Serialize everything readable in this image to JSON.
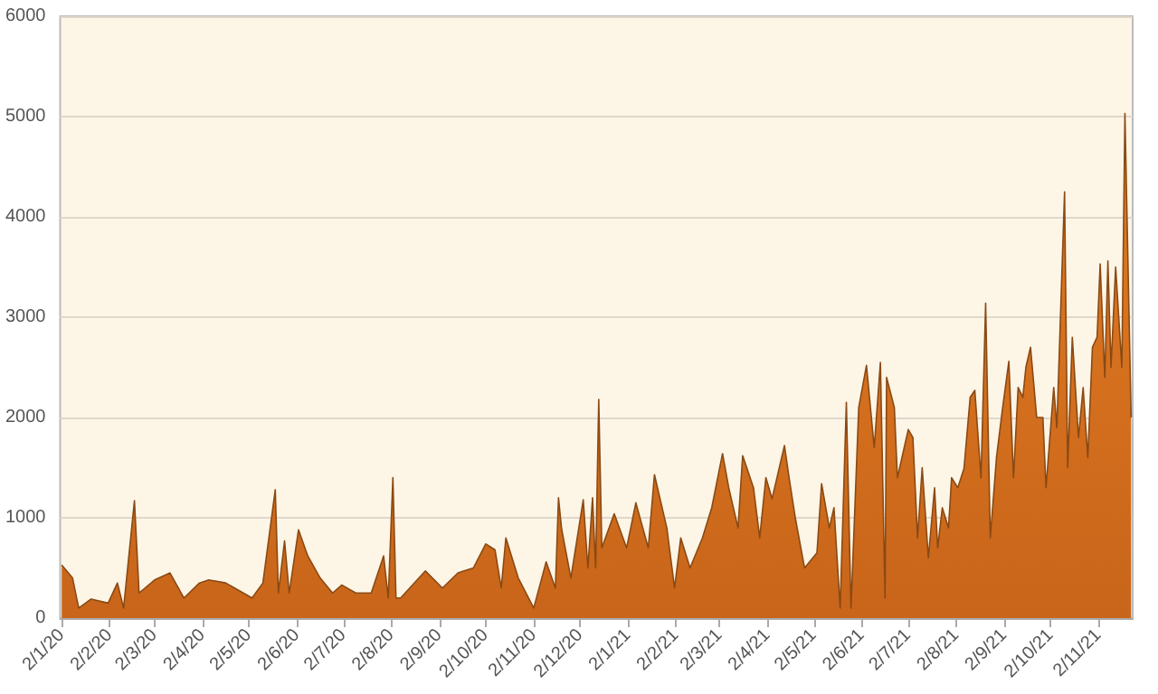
{
  "chart_data": {
    "type": "area",
    "x": [
      "2020-01-02",
      "2020-01-09",
      "2020-01-13",
      "2020-01-21",
      "2020-02-01",
      "2020-02-07",
      "2020-02-11",
      "2020-02-18",
      "2020-02-21",
      "2020-03-02",
      "2020-03-12",
      "2020-03-21",
      "2020-03-31",
      "2020-04-06",
      "2020-04-17",
      "2020-05-04",
      "2020-05-11",
      "2020-05-19",
      "2020-05-21",
      "2020-05-25",
      "2020-05-28",
      "2020-06-03",
      "2020-06-09",
      "2020-06-17",
      "2020-06-25",
      "2020-07-01",
      "2020-07-10",
      "2020-07-20",
      "2020-07-28",
      "2020-07-31",
      "2020-08-03",
      "2020-08-05",
      "2020-08-08",
      "2020-08-24",
      "2020-09-04",
      "2020-09-14",
      "2020-09-24",
      "2020-10-02",
      "2020-10-08",
      "2020-10-12",
      "2020-10-15",
      "2020-10-23",
      "2020-11-02",
      "2020-11-10",
      "2020-11-16",
      "2020-11-18",
      "2020-11-20",
      "2020-11-26",
      "2020-12-04",
      "2020-12-07",
      "2020-12-10",
      "2020-12-12",
      "2020-12-14",
      "2020-12-16",
      "2020-12-24",
      "2021-01-01",
      "2021-01-07",
      "2021-01-15",
      "2021-01-19",
      "2021-01-27",
      "2021-02-01",
      "2021-02-05",
      "2021-02-11",
      "2021-02-19",
      "2021-02-25",
      "2021-03-04",
      "2021-03-08",
      "2021-03-14",
      "2021-03-17",
      "2021-03-24",
      "2021-03-28",
      "2021-04-01",
      "2021-04-05",
      "2021-04-13",
      "2021-04-16",
      "2021-04-20",
      "2021-04-26",
      "2021-05-04",
      "2021-05-07",
      "2021-05-12",
      "2021-05-15",
      "2021-05-19",
      "2021-05-23",
      "2021-05-26",
      "2021-05-31",
      "2021-06-05",
      "2021-06-10",
      "2021-06-14",
      "2021-06-17",
      "2021-06-18",
      "2021-06-23",
      "2021-06-25",
      "2021-07-02",
      "2021-07-05",
      "2021-07-08",
      "2021-07-11",
      "2021-07-15",
      "2021-07-19",
      "2021-07-21",
      "2021-07-24",
      "2021-07-28",
      "2021-07-30",
      "2021-08-03",
      "2021-08-07",
      "2021-08-11",
      "2021-08-14",
      "2021-08-18",
      "2021-08-21",
      "2021-08-24",
      "2021-08-28",
      "2021-09-01",
      "2021-09-05",
      "2021-09-08",
      "2021-09-11",
      "2021-09-14",
      "2021-09-16",
      "2021-09-19",
      "2021-09-23",
      "2021-09-27",
      "2021-09-29",
      "2021-10-04",
      "2021-10-06",
      "2021-10-11",
      "2021-10-13",
      "2021-10-16",
      "2021-10-20",
      "2021-10-23",
      "2021-10-26",
      "2021-10-29",
      "2021-11-01",
      "2021-11-03",
      "2021-11-06",
      "2021-11-08",
      "2021-11-10",
      "2021-11-13",
      "2021-11-17",
      "2021-11-19",
      "2021-11-23"
    ],
    "series": [
      {
        "color": "#e07b22",
        "values": [
          530,
          400,
          100,
          190,
          150,
          350,
          100,
          1170,
          250,
          380,
          450,
          200,
          350,
          380,
          350,
          200,
          350,
          1280,
          250,
          770,
          250,
          880,
          620,
          400,
          250,
          330,
          250,
          250,
          620,
          200,
          1400,
          200,
          200,
          470,
          300,
          450,
          500,
          740,
          680,
          300,
          800,
          400,
          100,
          560,
          300,
          1200,
          890,
          400,
          1180,
          500,
          1200,
          500,
          2180,
          700,
          1040,
          700,
          1150,
          700,
          1430,
          900,
          300,
          800,
          500,
          800,
          1100,
          1640,
          1300,
          900,
          1620,
          1300,
          800,
          1400,
          1190,
          1720,
          1400,
          1000,
          500,
          650,
          1340,
          900,
          1100,
          100,
          2150,
          100,
          2100,
          2520,
          1700,
          2550,
          200,
          2400,
          2100,
          1400,
          1880,
          1800,
          800,
          1500,
          600,
          1300,
          700,
          1100,
          900,
          1400,
          1300,
          1490,
          2200,
          2270,
          1400,
          3140,
          800,
          1600,
          2100,
          2560,
          1400,
          2300,
          2200,
          2500,
          2700,
          2000,
          2000,
          1300,
          2300,
          1900,
          4250,
          1500,
          2800,
          1800,
          2300,
          1600,
          2700,
          2800,
          3530,
          2400,
          3560,
          2500,
          3500,
          2500,
          5030,
          2000
        ]
      }
    ],
    "xlim": [
      "2020-01-01",
      "2021-11-24"
    ],
    "xticks": [
      {
        "value": "2020-01-02",
        "label": "2/1/20"
      },
      {
        "value": "2020-02-02",
        "label": "2/2/20"
      },
      {
        "value": "2020-03-02",
        "label": "2/3/20"
      },
      {
        "value": "2020-04-02",
        "label": "2/4/20"
      },
      {
        "value": "2020-05-02",
        "label": "2/5/20"
      },
      {
        "value": "2020-06-02",
        "label": "2/6/20"
      },
      {
        "value": "2020-07-02",
        "label": "2/7/20"
      },
      {
        "value": "2020-08-02",
        "label": "2/8/20"
      },
      {
        "value": "2020-09-02",
        "label": "2/9/20"
      },
      {
        "value": "2020-10-02",
        "label": "2/10/20"
      },
      {
        "value": "2020-11-02",
        "label": "2/11/20"
      },
      {
        "value": "2020-12-02",
        "label": "2/12/20"
      },
      {
        "value": "2021-01-02",
        "label": "2/1/21"
      },
      {
        "value": "2021-02-02",
        "label": "2/2/21"
      },
      {
        "value": "2021-03-02",
        "label": "2/3/21"
      },
      {
        "value": "2021-04-02",
        "label": "2/4/21"
      },
      {
        "value": "2021-05-02",
        "label": "2/5/21"
      },
      {
        "value": "2021-06-02",
        "label": "2/6/21"
      },
      {
        "value": "2021-07-02",
        "label": "2/7/21"
      },
      {
        "value": "2021-08-02",
        "label": "2/8/21"
      },
      {
        "value": "2021-09-02",
        "label": "2/9/21"
      },
      {
        "value": "2021-10-02",
        "label": "2/10/21"
      },
      {
        "value": "2021-11-02",
        "label": "2/11/21"
      }
    ],
    "ylim": [
      0,
      6000
    ],
    "yticks": [
      0,
      1000,
      2000,
      3000,
      4000,
      5000,
      6000
    ],
    "grid": "y"
  }
}
